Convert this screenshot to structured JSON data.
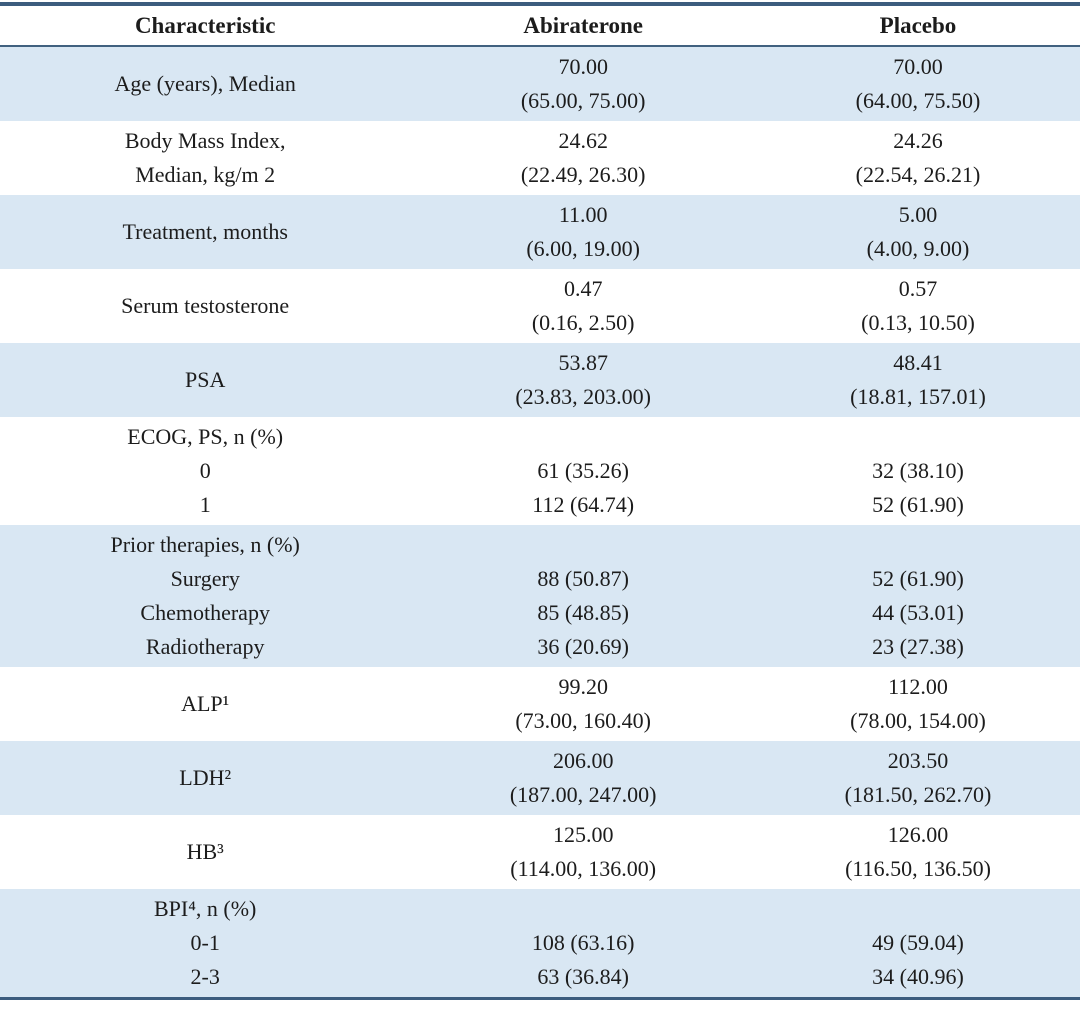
{
  "colors": {
    "shaded_row": "#d9e7f3",
    "rule_dark": "#3c5c7e",
    "text": "#1c1c1c"
  },
  "table": {
    "columns": [
      "Characteristic",
      "Abiraterone",
      "Placebo"
    ],
    "rows": [
      {
        "shaded": true,
        "characteristic": [
          "Age (years), Median"
        ],
        "abiraterone": [
          "70.00",
          "(65.00, 75.00)"
        ],
        "placebo": [
          "70.00",
          "(64.00, 75.50)"
        ]
      },
      {
        "shaded": false,
        "characteristic": [
          "Body Mass Index,",
          "Median, kg/m 2"
        ],
        "abiraterone": [
          "24.62",
          "(22.49, 26.30)"
        ],
        "placebo": [
          "24.26",
          "(22.54, 26.21)"
        ]
      },
      {
        "shaded": true,
        "characteristic": [
          "Treatment, months"
        ],
        "abiraterone": [
          "11.00",
          "(6.00, 19.00)"
        ],
        "placebo": [
          "5.00",
          "(4.00, 9.00)"
        ]
      },
      {
        "shaded": false,
        "characteristic": [
          "Serum testosterone"
        ],
        "abiraterone": [
          "0.47",
          "(0.16, 2.50)"
        ],
        "placebo": [
          "0.57",
          "(0.13, 10.50)"
        ]
      },
      {
        "shaded": true,
        "characteristic": [
          "PSA"
        ],
        "abiraterone": [
          "53.87",
          "(23.83, 203.00)"
        ],
        "placebo": [
          "48.41",
          "(18.81, 157.01)"
        ]
      },
      {
        "shaded": false,
        "characteristic": [
          "ECOG, PS, n (%)",
          "0",
          "1"
        ],
        "abiraterone": [
          "",
          "61 (35.26)",
          "112 (64.74)"
        ],
        "placebo": [
          "",
          "32 (38.10)",
          "52 (61.90)"
        ]
      },
      {
        "shaded": true,
        "characteristic": [
          "Prior therapies, n (%)",
          "Surgery",
          "Chemotherapy",
          "Radiotherapy"
        ],
        "abiraterone": [
          "",
          "88 (50.87)",
          "85 (48.85)",
          "36 (20.69)"
        ],
        "placebo": [
          "",
          "52 (61.90)",
          "44 (53.01)",
          "23 (27.38)"
        ]
      },
      {
        "shaded": false,
        "characteristic": [
          "ALP¹"
        ],
        "abiraterone": [
          "99.20",
          "(73.00, 160.40)"
        ],
        "placebo": [
          "112.00",
          "(78.00, 154.00)"
        ]
      },
      {
        "shaded": true,
        "characteristic": [
          "LDH²"
        ],
        "abiraterone": [
          "206.00",
          "(187.00, 247.00)"
        ],
        "placebo": [
          "203.50",
          "(181.50, 262.70)"
        ]
      },
      {
        "shaded": false,
        "characteristic": [
          "HB³"
        ],
        "abiraterone": [
          "125.00",
          "(114.00, 136.00)"
        ],
        "placebo": [
          "126.00",
          "(116.50, 136.50)"
        ]
      },
      {
        "shaded": true,
        "characteristic": [
          "BPI⁴, n (%)",
          "0-1",
          "2-3"
        ],
        "abiraterone": [
          "",
          "108 (63.16)",
          "63 (36.84)"
        ],
        "placebo": [
          "",
          "49 (59.04)",
          "34 (40.96)"
        ]
      }
    ]
  }
}
